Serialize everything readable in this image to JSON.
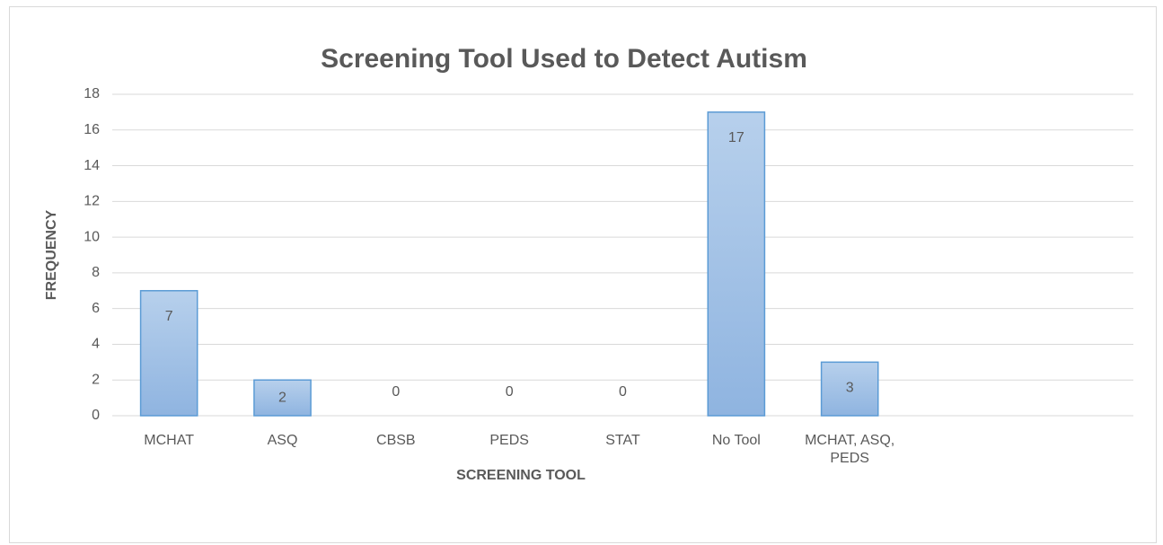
{
  "chart_data": {
    "type": "bar",
    "title": "Screening Tool Used to Detect Autism",
    "x_label": "SCREENING TOOL",
    "y_label": "FREQUENCY",
    "categories": [
      "MCHAT",
      "ASQ",
      "CBSB",
      "PEDS",
      "STAT",
      "No Tool",
      "MCHAT, ASQ, PEDS",
      null,
      null
    ],
    "values": [
      7,
      2,
      0,
      0,
      0,
      17,
      3,
      null,
      null
    ],
    "color": "#9dbfe6",
    "edge_color": "#5b9bd5",
    "ylim": [
      0,
      18
    ],
    "yticks": [
      0,
      2,
      4,
      6,
      8,
      10,
      12,
      14,
      16,
      18
    ],
    "grid": true
  }
}
